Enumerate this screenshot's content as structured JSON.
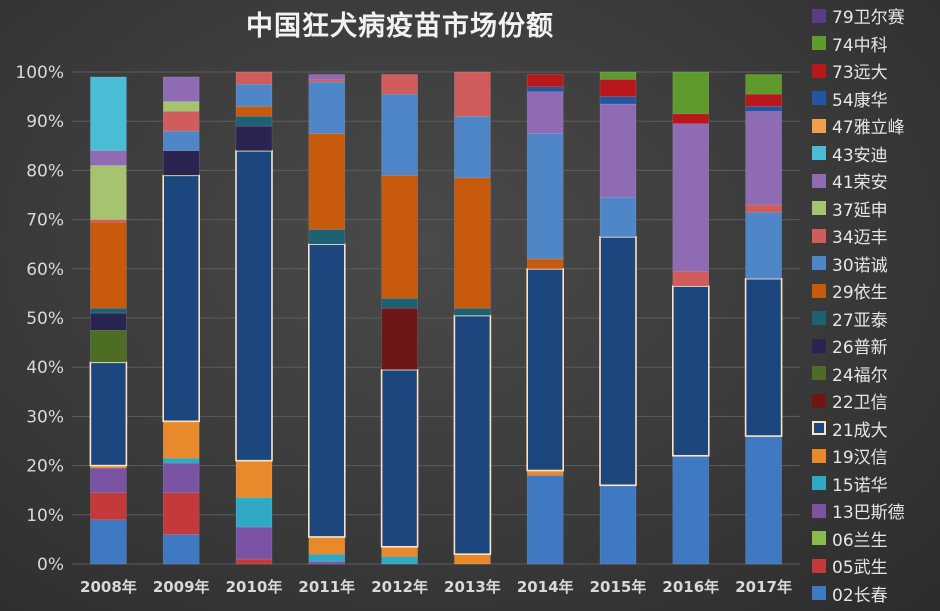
{
  "chart_data": {
    "type": "bar",
    "stacked": true,
    "normalized": true,
    "title": "中国狂犬病疫苗市场份额",
    "categories": [
      "2008年",
      "2009年",
      "2010年",
      "2011年",
      "2012年",
      "2013年",
      "2014年",
      "2015年",
      "2016年",
      "2017年"
    ],
    "ylim": [
      0,
      100
    ],
    "yticks": [
      "0%",
      "10%",
      "20%",
      "30%",
      "40%",
      "50%",
      "60%",
      "70%",
      "80%",
      "90%",
      "100%"
    ],
    "grid": true,
    "legend_position": "right",
    "series": [
      {
        "name": "02长春",
        "color": "#3f79c2",
        "values": [
          9,
          6,
          0,
          0,
          0,
          0,
          18,
          16,
          22,
          26
        ]
      },
      {
        "name": "05武生",
        "color": "#c4393a",
        "values": [
          5.5,
          8.5,
          1,
          0,
          0,
          0,
          0,
          0,
          0,
          0
        ]
      },
      {
        "name": "06兰生",
        "color": "#8ab94c",
        "values": [
          0,
          0,
          0,
          0,
          0,
          0,
          0,
          0,
          0,
          0
        ]
      },
      {
        "name": "13巴斯德",
        "color": "#7b53a3",
        "values": [
          5,
          6,
          6.5,
          0.5,
          0,
          0,
          0,
          0,
          0,
          0
        ]
      },
      {
        "name": "15诺华",
        "color": "#2fa9c4",
        "values": [
          0,
          1,
          6,
          1.5,
          1.5,
          0,
          0,
          0,
          0,
          0
        ]
      },
      {
        "name": "19汉信",
        "color": "#e8892b",
        "values": [
          0.5,
          7.5,
          7.5,
          3.5,
          2,
          2,
          1,
          0,
          0,
          0
        ]
      },
      {
        "name": "21成大",
        "color": "#1c467e",
        "values": [
          21,
          50,
          63,
          59.5,
          36,
          48.5,
          41,
          50.5,
          34.5,
          32
        ]
      },
      {
        "name": "22卫信",
        "color": "#6e1717",
        "values": [
          0,
          0,
          0,
          0,
          12.5,
          0,
          0,
          0,
          0,
          0
        ]
      },
      {
        "name": "24福尔",
        "color": "#4c6d23",
        "values": [
          6.5,
          0,
          0,
          0,
          0,
          0,
          0,
          0,
          0,
          0
        ]
      },
      {
        "name": "26普新",
        "color": "#2a2550",
        "values": [
          3.5,
          5,
          5,
          0,
          0,
          0,
          0,
          0,
          0,
          0
        ]
      },
      {
        "name": "27亚泰",
        "color": "#1d6172",
        "values": [
          1,
          0,
          2,
          3,
          2,
          1.5,
          0,
          0,
          0,
          0
        ]
      },
      {
        "name": "29依生",
        "color": "#c75a0c",
        "values": [
          17.5,
          0,
          2,
          19.5,
          25,
          26.5,
          2,
          0,
          0,
          0
        ]
      },
      {
        "name": "30诺诚",
        "color": "#4f86c7",
        "values": [
          0,
          4,
          4.5,
          10.5,
          16.5,
          12.5,
          25.5,
          8,
          0,
          13.5
        ]
      },
      {
        "name": "34迈丰",
        "color": "#d05c5c",
        "values": [
          0.5,
          4,
          2.5,
          0.5,
          4,
          9,
          0,
          0,
          3,
          1.5
        ]
      },
      {
        "name": "37延申",
        "color": "#a6c46f",
        "values": [
          11,
          2,
          0,
          0,
          0,
          0,
          0,
          0,
          0,
          0
        ]
      },
      {
        "name": "41荣安",
        "color": "#8e6bb3",
        "values": [
          3,
          5,
          0,
          1,
          0,
          0,
          8.5,
          19,
          30,
          19
        ]
      },
      {
        "name": "43安迪",
        "color": "#4bbcd6",
        "values": [
          15,
          0,
          0,
          0,
          0,
          0,
          0,
          0,
          0,
          0
        ]
      },
      {
        "name": "47雅立峰",
        "color": "#f0a04b",
        "values": [
          0,
          0,
          0,
          0,
          0,
          0,
          0,
          0,
          0,
          0
        ]
      },
      {
        "name": "54康华",
        "color": "#2356a2",
        "values": [
          0,
          0,
          0,
          0,
          0,
          0,
          1,
          1.5,
          0,
          1
        ]
      },
      {
        "name": "73远大",
        "color": "#b8181c",
        "values": [
          0,
          0,
          0,
          0,
          0,
          0,
          2.5,
          3.5,
          2,
          2.5
        ]
      },
      {
        "name": "74中科",
        "color": "#5e9a2c",
        "values": [
          0,
          0,
          0,
          0,
          0,
          0,
          0,
          1.5,
          8.5,
          4
        ]
      },
      {
        "name": "79卫尔赛",
        "color": "#5a3c86",
        "values": [
          0,
          0,
          0,
          0,
          0,
          0,
          0,
          0,
          0,
          0
        ]
      }
    ]
  }
}
